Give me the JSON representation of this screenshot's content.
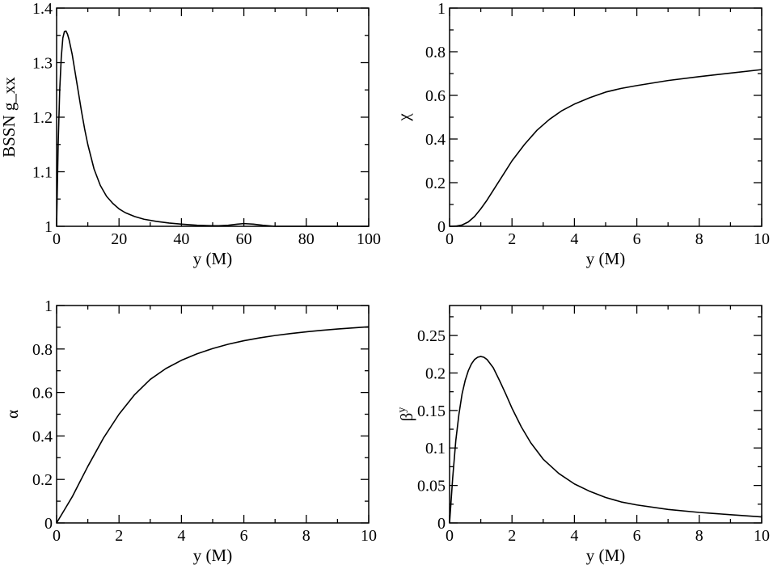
{
  "chart_data": [
    {
      "id": "gxx",
      "type": "line",
      "xlabel": "y (M)",
      "ylabel": "BSSN g_xx",
      "xlim": [
        0,
        100
      ],
      "ylim": [
        1,
        1.4
      ],
      "xticks": [
        0,
        20,
        40,
        60,
        80,
        100
      ],
      "yticks": [
        1,
        1.1,
        1.2,
        1.3,
        1.4
      ],
      "xtick_labels": [
        "0",
        "20",
        "40",
        "60",
        "80",
        "100"
      ],
      "ytick_labels": [
        "1",
        "1.1",
        "1.2",
        "1.3",
        "1.4"
      ],
      "grid": false,
      "series": [
        {
          "x": [
            0,
            0.5,
            1,
            1.5,
            2,
            2.5,
            3,
            3.5,
            4,
            5,
            6,
            7,
            8,
            9,
            10,
            12,
            14,
            16,
            18,
            20,
            22,
            25,
            28,
            32,
            36,
            40,
            45,
            50,
            52,
            55,
            58,
            60,
            63,
            66,
            70,
            75,
            80,
            90,
            100
          ],
          "y": [
            1.0,
            1.15,
            1.25,
            1.31,
            1.345,
            1.357,
            1.358,
            1.352,
            1.342,
            1.315,
            1.28,
            1.245,
            1.21,
            1.178,
            1.15,
            1.105,
            1.075,
            1.055,
            1.042,
            1.032,
            1.025,
            1.018,
            1.013,
            1.009,
            1.006,
            1.004,
            1.002,
            1.001,
            1.001,
            1.002,
            1.004,
            1.005,
            1.004,
            1.002,
            1.0,
            1.0,
            1.0,
            1.0,
            1.0
          ]
        }
      ]
    },
    {
      "id": "chi",
      "type": "line",
      "xlabel": "y (M)",
      "ylabel": "χ",
      "xlim": [
        0,
        10
      ],
      "ylim": [
        0,
        1
      ],
      "xticks": [
        0,
        2,
        4,
        6,
        8,
        10
      ],
      "yticks": [
        0,
        0.2,
        0.4,
        0.6,
        0.8,
        1
      ],
      "xtick_labels": [
        "0",
        "2",
        "4",
        "6",
        "8",
        "10"
      ],
      "ytick_labels": [
        "0",
        "0.2",
        "0.4",
        "0.6",
        "0.8",
        "1"
      ],
      "grid": false,
      "series": [
        {
          "x": [
            0,
            0.2,
            0.4,
            0.6,
            0.8,
            1.0,
            1.2,
            1.4,
            1.6,
            1.8,
            2.0,
            2.4,
            2.8,
            3.2,
            3.6,
            4.0,
            4.5,
            5.0,
            5.5,
            6.0,
            7.0,
            8.0,
            9.0,
            10.0
          ],
          "y": [
            0.0,
            0.001,
            0.006,
            0.02,
            0.045,
            0.08,
            0.12,
            0.165,
            0.21,
            0.255,
            0.3,
            0.375,
            0.44,
            0.49,
            0.53,
            0.56,
            0.59,
            0.615,
            0.632,
            0.645,
            0.668,
            0.686,
            0.702,
            0.718
          ]
        }
      ]
    },
    {
      "id": "alpha",
      "type": "line",
      "xlabel": "y (M)",
      "ylabel": "α",
      "xlim": [
        0,
        10
      ],
      "ylim": [
        0,
        1
      ],
      "xticks": [
        0,
        2,
        4,
        6,
        8,
        10
      ],
      "yticks": [
        0,
        0.2,
        0.4,
        0.6,
        0.8,
        1
      ],
      "xtick_labels": [
        "0",
        "2",
        "4",
        "6",
        "8",
        "10"
      ],
      "ytick_labels": [
        "0",
        "0.2",
        "0.4",
        "0.6",
        "0.8",
        "1"
      ],
      "grid": false,
      "series": [
        {
          "x": [
            0,
            0.25,
            0.5,
            0.75,
            1.0,
            1.5,
            2.0,
            2.5,
            3.0,
            3.5,
            4.0,
            4.5,
            5.0,
            5.5,
            6.0,
            6.5,
            7.0,
            7.5,
            8.0,
            8.5,
            9.0,
            9.5,
            10.0
          ],
          "y": [
            0.0,
            0.06,
            0.12,
            0.19,
            0.26,
            0.39,
            0.5,
            0.59,
            0.66,
            0.71,
            0.748,
            0.778,
            0.802,
            0.822,
            0.838,
            0.851,
            0.862,
            0.871,
            0.879,
            0.886,
            0.892,
            0.897,
            0.902
          ]
        }
      ]
    },
    {
      "id": "beta",
      "type": "line",
      "xlabel": "y (M)",
      "ylabel": "β",
      "ylabel_sup": "y",
      "xlim": [
        0,
        10
      ],
      "ylim": [
        0,
        0.29
      ],
      "xticks": [
        0,
        2,
        4,
        6,
        8,
        10
      ],
      "yticks": [
        0,
        0.05,
        0.1,
        0.15,
        0.2,
        0.25
      ],
      "xtick_labels": [
        "0",
        "2",
        "4",
        "6",
        "8",
        "10"
      ],
      "ytick_labels": [
        "0",
        "0.05",
        "0.1",
        "0.15",
        "0.2",
        "0.25"
      ],
      "grid": false,
      "series": [
        {
          "x": [
            0,
            0.05,
            0.1,
            0.2,
            0.3,
            0.4,
            0.5,
            0.6,
            0.7,
            0.8,
            0.9,
            1.0,
            1.1,
            1.2,
            1.4,
            1.6,
            1.8,
            2.0,
            2.3,
            2.6,
            3.0,
            3.5,
            4.0,
            4.5,
            5.0,
            5.5,
            6.0,
            7.0,
            8.0,
            9.0,
            10.0
          ],
          "y": [
            0.0,
            0.03,
            0.06,
            0.11,
            0.145,
            0.172,
            0.19,
            0.203,
            0.212,
            0.218,
            0.221,
            0.222,
            0.221,
            0.218,
            0.207,
            0.19,
            0.172,
            0.153,
            0.128,
            0.107,
            0.085,
            0.066,
            0.052,
            0.042,
            0.034,
            0.028,
            0.024,
            0.018,
            0.014,
            0.011,
            0.008
          ]
        }
      ]
    }
  ]
}
